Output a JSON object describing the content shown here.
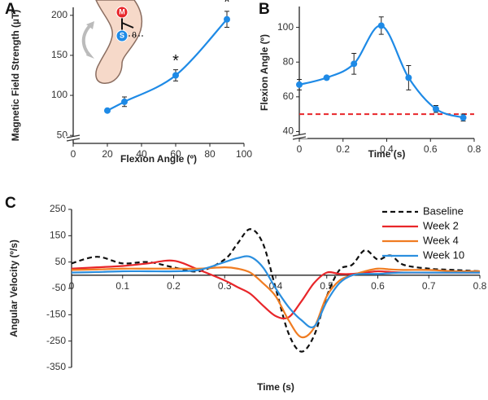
{
  "chart_data": [
    {
      "type": "line",
      "panel_label": "A",
      "x_label": "Flexion Angle (º)",
      "y_label": "Magnetic Field Strength (µT)",
      "x": [
        20,
        30,
        60,
        90
      ],
      "values": [
        81,
        92,
        125,
        195
      ],
      "errors": [
        2,
        6,
        7,
        10
      ],
      "color": "#1e8ae6",
      "xlim": [
        0,
        100
      ],
      "xticks": [
        0,
        20,
        40,
        60,
        80,
        100
      ],
      "ylim": [
        40,
        210
      ],
      "yticks": [
        50,
        100,
        150,
        200
      ],
      "annotations": [
        {
          "text": "*",
          "x": 60
        },
        {
          "text": "*",
          "x": 90
        }
      ],
      "inset_labels": [
        "M",
        "S",
        "θ"
      ]
    },
    {
      "type": "line",
      "panel_label": "B",
      "x_label": "Time (s)",
      "y_label": "Flexion  Angle (º)",
      "x": [
        0,
        0.125,
        0.25,
        0.375,
        0.5,
        0.625,
        0.75
      ],
      "values": [
        67,
        71,
        79,
        101,
        71,
        53,
        48
      ],
      "errors": [
        3,
        1,
        6,
        5,
        7,
        2,
        2
      ],
      "color": "#1e8ae6",
      "xlim": [
        0,
        0.8
      ],
      "xticks": [
        0,
        0.2,
        0.4,
        0.6,
        0.8
      ],
      "ylim": [
        36,
        112
      ],
      "yticks": [
        40,
        60,
        80,
        100
      ],
      "reference_line": {
        "y": 50,
        "color": "#e8262a",
        "style": "dashed"
      }
    },
    {
      "type": "line",
      "panel_label": "C",
      "x_label": "Time (s)",
      "y_label": "Angular Velocity (º/s)",
      "x": [
        0,
        0.05,
        0.1,
        0.15,
        0.2,
        0.25,
        0.3,
        0.325,
        0.35,
        0.375,
        0.4,
        0.425,
        0.45,
        0.475,
        0.5,
        0.525,
        0.55,
        0.575,
        0.6,
        0.625,
        0.65,
        0.7,
        0.75,
        0.8
      ],
      "series": [
        {
          "name": "Baseline",
          "color": "#111111",
          "style": "dashed",
          "values": [
            45,
            70,
            45,
            50,
            30,
            15,
            60,
            120,
            175,
            120,
            -50,
            -220,
            -290,
            -230,
            -80,
            20,
            40,
            95,
            60,
            75,
            40,
            25,
            20,
            15
          ]
        },
        {
          "name": "Week 2",
          "color": "#e8262a",
          "style": "solid",
          "values": [
            25,
            30,
            35,
            45,
            55,
            20,
            -20,
            -45,
            -70,
            -115,
            -155,
            -160,
            -100,
            -30,
            10,
            5,
            5,
            10,
            15,
            12,
            10,
            10,
            10,
            10
          ]
        },
        {
          "name": "Week 4",
          "color": "#f07c22",
          "style": "solid",
          "values": [
            20,
            22,
            25,
            25,
            25,
            25,
            30,
            25,
            10,
            -30,
            -80,
            -170,
            -235,
            -200,
            -80,
            -20,
            0,
            15,
            25,
            22,
            20,
            20,
            15,
            15
          ]
        },
        {
          "name": "Week 10",
          "color": "#2b8fdf",
          "style": "solid",
          "values": [
            10,
            12,
            15,
            15,
            15,
            20,
            50,
            65,
            70,
            30,
            -50,
            -120,
            -170,
            -195,
            -100,
            -30,
            0,
            5,
            5,
            8,
            10,
            10,
            10,
            10
          ]
        }
      ],
      "xlim": [
        0,
        0.8
      ],
      "xticks": [
        0,
        0.1,
        0.2,
        0.3,
        0.4,
        0.5,
        0.6,
        0.7,
        0.8
      ],
      "ylim": [
        -350,
        250
      ],
      "yticks": [
        -350,
        -250,
        -150,
        -50,
        50,
        150,
        250
      ],
      "legend": "top-right"
    }
  ]
}
